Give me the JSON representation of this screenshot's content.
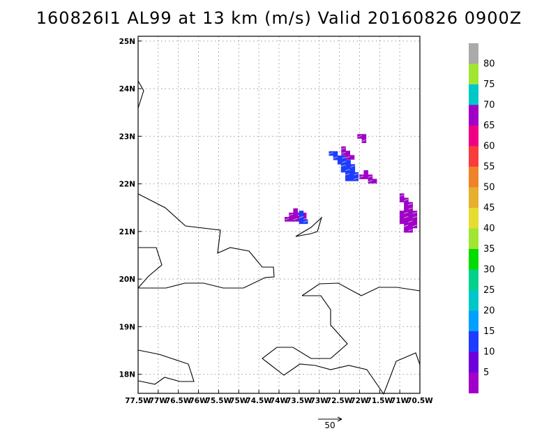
{
  "title": "160826I1 AL99 at 13 km (m/s) Valid 20160826 0900Z",
  "chart_data": {
    "type": "map",
    "title": "160826I1 AL99 at 13 km (m/s) Valid 20160826 0900Z",
    "x_ticks": [
      "77.5W",
      "77W",
      "76.5W",
      "76W",
      "75.5W",
      "75W",
      "74.5W",
      "74W",
      "73.5W",
      "73W",
      "72.5W",
      "72W",
      "71.5W",
      "71W",
      "70.5W"
    ],
    "y_ticks": [
      "18N",
      "19N",
      "20N",
      "21N",
      "22N",
      "23N",
      "24N",
      "25N"
    ],
    "xlim": [
      -77.5,
      -70.5
    ],
    "ylim": [
      17.6,
      25.1
    ],
    "grid": true,
    "colorbar": {
      "labels": [
        "5",
        "10",
        "15",
        "20",
        "25",
        "30",
        "35",
        "40",
        "45",
        "50",
        "55",
        "60",
        "65",
        "70",
        "75",
        "80"
      ],
      "colors": [
        "#a000c8",
        "#6e00dc",
        "#1e3cff",
        "#00a0ff",
        "#00c8c8",
        "#00d28c",
        "#00dc00",
        "#a0e632",
        "#e6dc32",
        "#e6af2d",
        "#f08228",
        "#fa3c3c",
        "#f00082",
        "#a000c8",
        "#00c8c8",
        "#a0e632",
        "#aaaaaa"
      ]
    },
    "reference_vector": "50",
    "wind_patches": [
      {
        "lon": -73.7,
        "lat": 21.35,
        "speed_class": "5-10",
        "color": "#a000c8"
      },
      {
        "lon": -73.45,
        "lat": 21.3,
        "speed_class": "10-15",
        "color": "#1e3cff"
      },
      {
        "lon": -72.6,
        "lat": 22.55,
        "speed_class": "10-15",
        "color": "#1e3cff"
      },
      {
        "lon": -72.3,
        "lat": 22.2,
        "speed_class": "10-15",
        "color": "#1e3cff"
      },
      {
        "lon": -72.4,
        "lat": 22.65,
        "speed_class": "5-10",
        "color": "#a000c8"
      },
      {
        "lon": -72.0,
        "lat": 23.0,
        "speed_class": "5-10",
        "color": "#a000c8"
      },
      {
        "lon": -71.95,
        "lat": 22.15,
        "speed_class": "5-10",
        "color": "#a000c8"
      },
      {
        "lon": -70.95,
        "lat": 21.3,
        "speed_class": "5-10",
        "color": "#a000c8"
      }
    ]
  }
}
